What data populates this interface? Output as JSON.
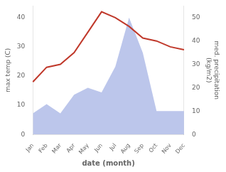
{
  "chart_data": {
    "type": "line",
    "categories": [
      "Jan",
      "Feb",
      "Mar",
      "Apr",
      "May",
      "Jun",
      "Jul",
      "Aug",
      "Sep",
      "Oct",
      "Nov",
      "Dec"
    ],
    "series": [
      {
        "type": "line",
        "color": "#c0392b",
        "values": [
          18,
          23,
          24,
          28,
          35,
          42,
          40,
          37,
          33,
          32,
          30,
          29
        ]
      },
      {
        "type": "area",
        "color": "#b0bce8",
        "axis": "y2",
        "values": [
          9,
          13,
          9,
          17,
          20,
          18,
          29,
          50,
          35,
          10,
          10,
          10
        ]
      }
    ],
    "x_label": "date (month)",
    "y_label": "max temp (C)",
    "y2_label": "med. precipitation\n(kg/m2)",
    "ylim": [
      0,
      44
    ],
    "yticks": [
      0,
      10,
      20,
      30,
      40
    ],
    "y2lim": [
      0,
      55
    ],
    "y2ticks": [
      0,
      10,
      20,
      30,
      40,
      50
    ],
    "grid": false
  }
}
